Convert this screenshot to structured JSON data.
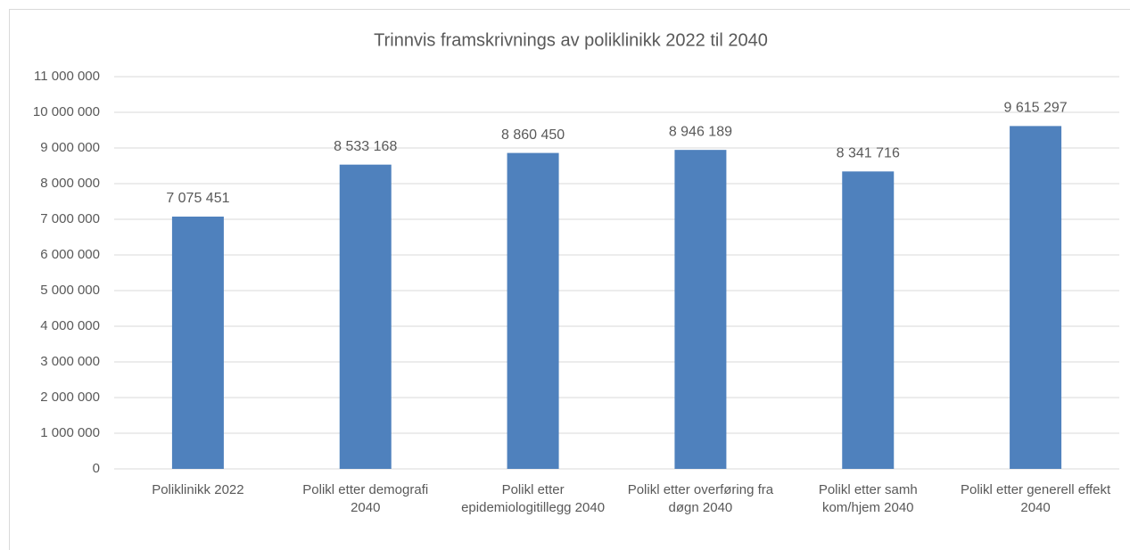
{
  "chart_data": {
    "type": "bar",
    "title": "Trinnvis framskrivnings av poliklinikk 2022 til 2040",
    "categories": [
      "Poliklinikk 2022",
      "Polikl etter demografi 2040",
      "Polikl etter epidemiologitillegg 2040",
      "Polikl etter overføring fra døgn 2040",
      "Polikl etter samh kom/hjem 2040",
      "Polikl etter generell effekt 2040"
    ],
    "values": [
      7075451,
      8533168,
      8860450,
      8946189,
      8341716,
      9615297
    ],
    "value_labels": [
      "7 075 451",
      "8 533 168",
      "8 860 450",
      "8 946 189",
      "8 341 716",
      "9 615 297"
    ],
    "color": "#4f81bd",
    "ylim": [
      0,
      11000000
    ],
    "yticks": [
      0,
      {
        "value": 1000000,
        "label": "1 000 000"
      },
      {
        "value": 2000000,
        "label": "2 000 000"
      },
      {
        "value": 3000000,
        "label": "3 000 000"
      },
      {
        "value": 4000000,
        "label": "4 000 000"
      },
      {
        "value": 5000000,
        "label": "5 000 000"
      },
      {
        "value": 6000000,
        "label": "6 000 000"
      },
      {
        "value": 7000000,
        "label": "7 000 000"
      },
      {
        "value": 8000000,
        "label": "8 000 000"
      },
      {
        "value": 9000000,
        "label": "9 000 000"
      },
      {
        "value": 10000000,
        "label": "10 000 000"
      },
      {
        "value": 11000000,
        "label": "11 000 000"
      }
    ],
    "grid": true
  }
}
